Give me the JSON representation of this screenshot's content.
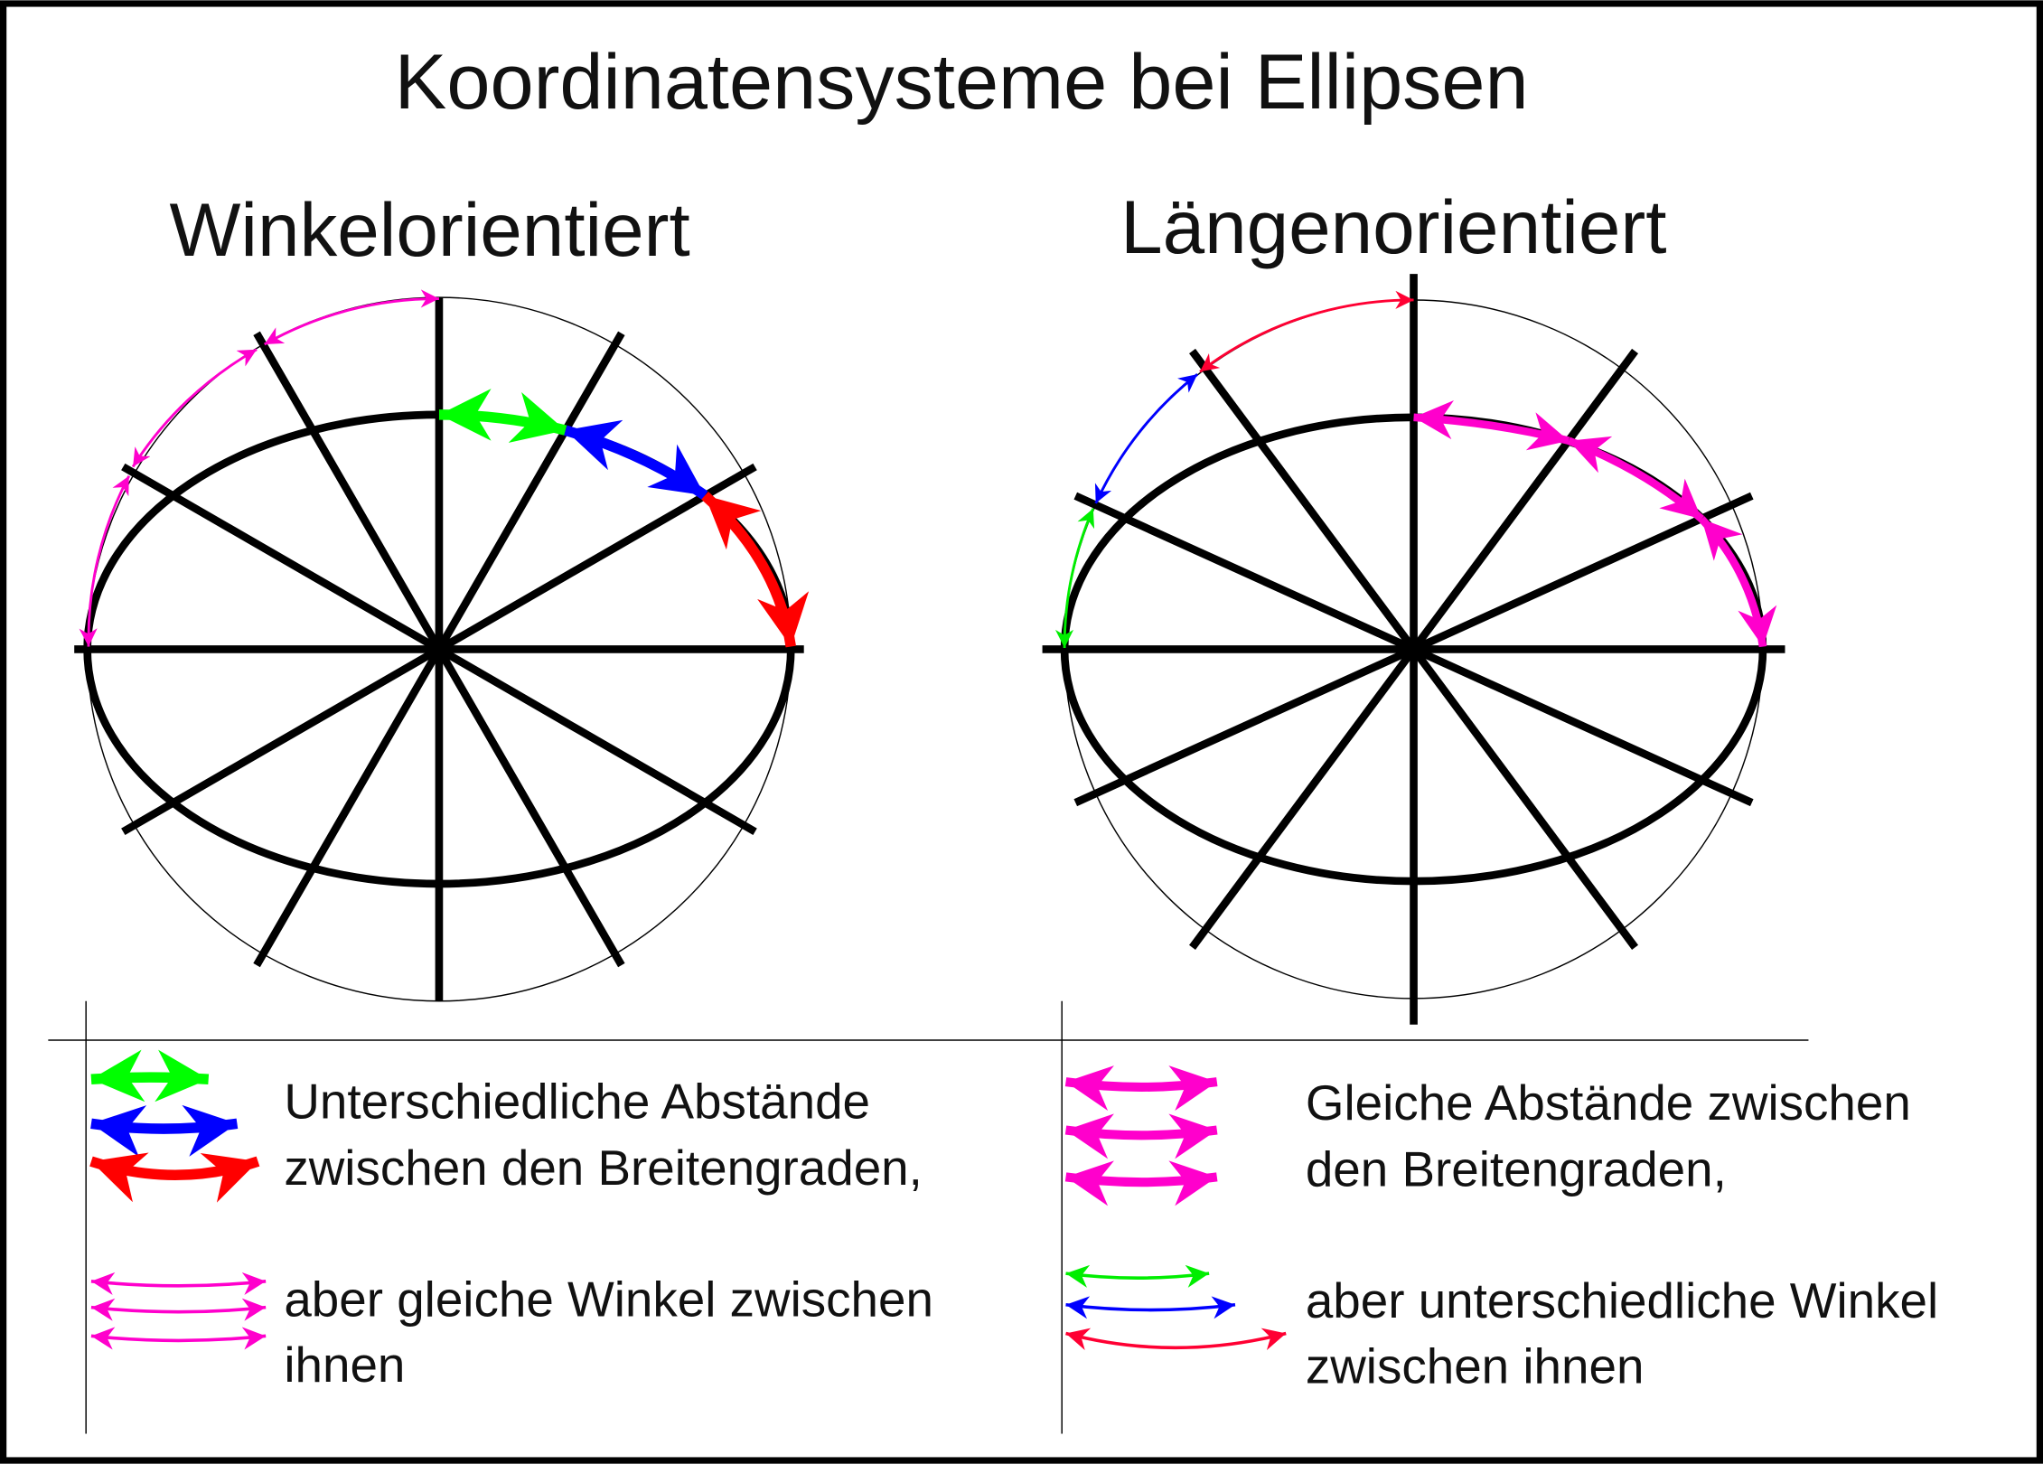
{
  "title": "Koordinatensysteme bei Ellipsen",
  "left": {
    "heading": "Winkelorientiert",
    "legend_text_1": "Unterschiedliche Abstände",
    "legend_text_2": "zwischen den Breitengraden,",
    "legend_text_3": "aber gleiche Winkel zwischen",
    "legend_text_4": "ihnen"
  },
  "right": {
    "heading": "Längenorientiert",
    "legend_text_1": "Gleiche Abstände zwischen",
    "legend_text_2": "den Breitengraden,",
    "legend_text_3": "aber unterschiedliche Winkel",
    "legend_text_4": "zwischen ihnen"
  },
  "colors": {
    "green": "#00ff00",
    "blue": "#0000ff",
    "red": "#ff0000",
    "magenta": "#ff00cc",
    "ink": "#000000"
  }
}
